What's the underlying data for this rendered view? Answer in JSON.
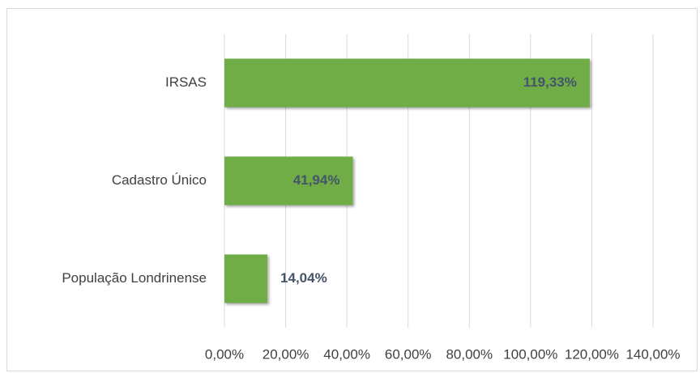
{
  "chart_data": {
    "type": "bar",
    "orientation": "horizontal",
    "categories": [
      "IRSAS",
      "Cadastro Único",
      "População Londrinense"
    ],
    "values": [
      119.33,
      41.94,
      14.04
    ],
    "value_labels": [
      "119,33%",
      "41,94%",
      "14,04%"
    ],
    "color": "#70ad47",
    "xlim": [
      0,
      140
    ],
    "xticks": [
      {
        "value": 0,
        "label": "0,00%"
      },
      {
        "value": 20,
        "label": "20,00%"
      },
      {
        "value": 40,
        "label": "40,00%"
      },
      {
        "value": 60,
        "label": "60,00%"
      },
      {
        "value": 80,
        "label": "80,00%"
      },
      {
        "value": 100,
        "label": "100,00%"
      },
      {
        "value": 120,
        "label": "120,00%"
      },
      {
        "value": 140,
        "label": "140,00%"
      }
    ],
    "grid": true
  }
}
